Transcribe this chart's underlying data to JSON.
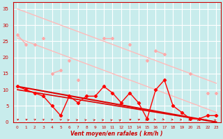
{
  "background_color": "#c8ecec",
  "grid_color": "#b8e0e0",
  "xlabel": "Vent moyen/en rafales ( km/h )",
  "ylim": [
    0,
    37
  ],
  "yticks": [
    0,
    5,
    10,
    15,
    20,
    25,
    30,
    35
  ],
  "x_labels": [
    "0",
    "1",
    "2",
    "3",
    "4",
    "5",
    "6",
    "7",
    "8",
    "9",
    "10",
    "11",
    "12",
    "13",
    "14",
    "15",
    "16",
    "17",
    "18",
    "19",
    "20",
    "21",
    "22",
    "23"
  ],
  "color_light1": "#ffaaaa",
  "color_light2": "#ffbbbb",
  "color_dark": "#ff0000",
  "color_trend_dark": "#dd0000",
  "color_dark2": "#cc2222",
  "light_line1": [
    27,
    24,
    null,
    26,
    null,
    null,
    19,
    null,
    null,
    null,
    26,
    26,
    null,
    24,
    null,
    null,
    22,
    21,
    null,
    null,
    null,
    null,
    9,
    null
  ],
  "light_line2": [
    null,
    null,
    24,
    null,
    15,
    16,
    null,
    13,
    null,
    null,
    null,
    null,
    null,
    null,
    null,
    null,
    null,
    null,
    null,
    null,
    null,
    null,
    null,
    null
  ],
  "light_line3": [
    null,
    null,
    null,
    null,
    null,
    null,
    null,
    null,
    null,
    null,
    null,
    null,
    null,
    null,
    null,
    19,
    null,
    null,
    null,
    null,
    15,
    null,
    null,
    9
  ],
  "trend_light_upper": [
    35,
    34.0,
    33.0,
    32.0,
    31.0,
    30.0,
    29.0,
    28.0,
    27.0,
    26.0,
    25.0,
    24.0,
    23.0,
    22.0,
    21.0,
    20.0,
    19.0,
    18.0,
    17.0,
    16.0,
    15.0,
    14.0,
    13.0,
    12.0
  ],
  "trend_light_lower": [
    26,
    25.0,
    24.0,
    23.0,
    22.0,
    21.0,
    20.0,
    19.0,
    18.0,
    17.0,
    16.0,
    15.0,
    14.0,
    13.0,
    12.0,
    11.0,
    10.0,
    9.0,
    8.0,
    7.0,
    6.0,
    5.0,
    4.0,
    3.0
  ],
  "dark_line": [
    11,
    10,
    9,
    8,
    5,
    2,
    8,
    6,
    8,
    8,
    11,
    9,
    6,
    9,
    6,
    1,
    10,
    13,
    5,
    3,
    1,
    1,
    2,
    2
  ],
  "trend_dark_upper": [
    11,
    10.52,
    10.04,
    9.57,
    9.09,
    8.61,
    8.13,
    7.65,
    7.17,
    6.7,
    6.22,
    5.74,
    5.26,
    4.78,
    4.3,
    3.83,
    3.35,
    2.87,
    2.39,
    1.91,
    1.43,
    0.96,
    0.48,
    0.0
  ],
  "trend_dark_lower": [
    10,
    9.57,
    9.13,
    8.7,
    8.26,
    7.83,
    7.39,
    6.96,
    6.52,
    6.09,
    5.65,
    5.22,
    4.78,
    4.35,
    3.91,
    3.48,
    3.04,
    2.61,
    2.17,
    1.74,
    1.3,
    0.87,
    0.43,
    0.0
  ],
  "wind_directions": [
    45,
    45,
    35,
    30,
    30,
    30,
    60,
    65,
    65,
    60,
    60,
    55,
    50,
    45,
    45,
    90,
    120,
    130,
    110,
    100,
    90,
    65,
    55,
    50
  ]
}
